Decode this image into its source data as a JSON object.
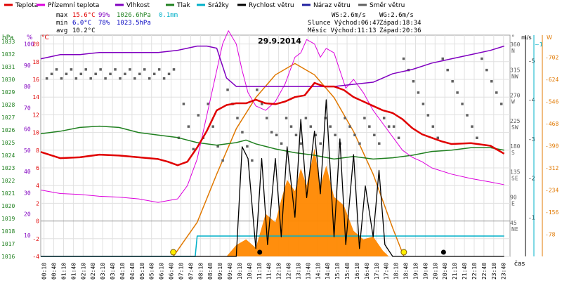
{
  "chart_data": {
    "type": "line",
    "title": "29.9.2014",
    "legend": [
      {
        "name": "Teplota",
        "color": "#e00000"
      },
      {
        "name": "Přízemní teplota",
        "color": "#dd00dd"
      },
      {
        "name": "Vlhkost",
        "color": "#8000c0"
      },
      {
        "name": "Tlak",
        "color": "#208020"
      },
      {
        "name": "Srážky",
        "color": "#00b0c8"
      },
      {
        "name": "Rychlost větru",
        "color": "#000000"
      },
      {
        "name": "Náraz větru",
        "color": "#2020a0"
      },
      {
        "name": "Směr větru",
        "color": "#606060"
      }
    ],
    "stats": {
      "max": {
        "label": "max",
        "temp": "15.6°C",
        "hum": "99%",
        "press": "1026.6hPa",
        "rain": "0.1mm"
      },
      "min": {
        "label": "min",
        "temp": "6.0°C",
        "hum": "78%",
        "press": "1023.5hPa"
      },
      "avg": {
        "label": "avg",
        "temp": "10.2°C"
      }
    },
    "info": {
      "ws": "WS:2.6m/s",
      "wg": "WG:2.6m/s",
      "sun": "Slunce Východ:06:47",
      "sun_set": "Západ:18:34",
      "moon": "Měsíc  Východ:11:13",
      "moon_set": "Západ:20:36"
    },
    "axes": {
      "hpa": {
        "label": "hPa",
        "ticks": [
          "1033",
          "1032",
          "1031",
          "1030",
          "1029",
          "1028",
          "1027",
          "1026",
          "1025",
          "1024",
          "1023",
          "1022",
          "1021",
          "1020",
          "1019",
          "1018",
          "1017",
          "1016"
        ]
      },
      "pct": {
        "label": "%",
        "ticks": [
          "100",
          "90",
          "80",
          "70",
          "60",
          "50",
          "40",
          "30",
          "20",
          "10"
        ]
      },
      "degc": {
        "label": "°C",
        "ticks": [
          "20",
          "18",
          "16",
          "14",
          "12",
          "10",
          "8",
          "6",
          "4",
          "2",
          "0",
          "-2",
          "-4"
        ]
      },
      "dir": {
        "label": "°",
        "ticks": [
          {
            "v": "360",
            "d": "N"
          },
          {
            "v": "315",
            "d": "NW"
          },
          {
            "v": "270",
            "d": "W"
          },
          {
            "v": "225",
            "d": "SW"
          },
          {
            "v": "180",
            "d": "S"
          },
          {
            "v": "135",
            "d": "SE"
          },
          {
            "v": "90",
            "d": "E"
          },
          {
            "v": "45",
            "d": "NE"
          }
        ]
      },
      "ms": {
        "label": "m/s",
        "ticks": [
          "5",
          "4",
          "3",
          "2",
          "1"
        ]
      },
      "wm2": {
        "label": "W",
        "ticks": [
          "702",
          "624",
          "546",
          "468",
          "390",
          "312",
          "234",
          "156",
          "78"
        ]
      },
      "rain_mm": {
        "label": "~1"
      },
      "time_label": "čas",
      "time_ticks": [
        "00:10",
        "00:40",
        "01:10",
        "01:40",
        "02:10",
        "02:40",
        "03:10",
        "03:40",
        "04:10",
        "04:40",
        "05:10",
        "05:40",
        "06:10",
        "06:40",
        "07:10",
        "07:40",
        "08:10",
        "08:40",
        "09:10",
        "09:40",
        "10:10",
        "10:40",
        "11:10",
        "11:40",
        "12:10",
        "12:40",
        "13:10",
        "13:40",
        "14:10",
        "14:40",
        "15:10",
        "15:40",
        "16:10",
        "16:40",
        "17:10",
        "17:40",
        "18:10",
        "18:40",
        "19:10",
        "19:40",
        "20:10",
        "20:40",
        "21:10",
        "21:40",
        "22:10",
        "22:40",
        "23:10",
        "23:40"
      ]
    },
    "series": {
      "teplota": {
        "x": [
          0,
          1,
          2,
          3,
          4,
          5,
          6,
          6.5,
          7,
          7.5,
          8,
          8.5,
          9,
          9.5,
          10,
          10.5,
          11,
          11.5,
          12,
          12.5,
          13,
          13.5,
          14,
          14.5,
          15,
          15.5,
          16,
          16.5,
          17,
          17.5,
          18,
          18.5,
          19,
          19.5,
          20,
          20.5,
          21,
          22,
          23,
          23.7
        ],
        "y": [
          7.8,
          7.1,
          7.2,
          7.5,
          7.4,
          7.2,
          7.0,
          6.7,
          6.3,
          6.7,
          8.3,
          10.2,
          12.5,
          13.1,
          13.3,
          13.3,
          13.7,
          13.3,
          13.2,
          13.5,
          14.0,
          14.2,
          15.6,
          15.2,
          15.2,
          14.8,
          14.0,
          13.5,
          13.0,
          12.5,
          12.2,
          11.5,
          10.5,
          9.8,
          9.4,
          9.0,
          8.7,
          8.8,
          8.5,
          7.6
        ]
      },
      "prizemni": {
        "x": [
          0,
          1,
          2,
          3,
          4,
          5,
          6,
          6.5,
          7,
          7.5,
          8,
          8.5,
          9,
          9.3,
          9.6,
          10,
          10.3,
          10.6,
          11,
          11.5,
          12,
          12.5,
          13,
          13.3,
          13.6,
          14,
          14.3,
          14.6,
          15,
          15.3,
          15.6,
          16,
          16.5,
          17,
          17.5,
          18,
          18.5,
          19,
          19.5,
          20,
          21,
          22,
          23,
          23.7
        ],
        "y": [
          3.5,
          3.1,
          3.0,
          2.8,
          2.7,
          2.5,
          2.1,
          2.3,
          2.5,
          4.0,
          7.0,
          12.0,
          17.0,
          20.0,
          21.5,
          20.0,
          17.0,
          14.5,
          13.0,
          12.5,
          13.5,
          15.5,
          18.5,
          19.0,
          20.5,
          20.0,
          18.5,
          19.5,
          19.0,
          17.0,
          15.0,
          16.0,
          14.5,
          12.5,
          11.0,
          9.5,
          8.0,
          7.2,
          6.7,
          6.0,
          5.3,
          4.8,
          4.4,
          4.1
        ]
      },
      "vlhkost": {
        "x": [
          0,
          1,
          2,
          3,
          4,
          5,
          6,
          7,
          7.5,
          8,
          8.5,
          9,
          9.5,
          10,
          11,
          12,
          13,
          14,
          15,
          16,
          17,
          18,
          19,
          20,
          21,
          22,
          23,
          23.7
        ],
        "y": [
          93,
          95,
          95,
          96,
          96,
          96,
          96,
          97,
          98,
          99,
          99,
          98,
          84,
          80,
          80,
          80,
          80,
          80,
          80,
          81,
          82,
          86,
          88,
          91,
          93,
          95,
          97,
          99
        ]
      },
      "tlak": {
        "x": [
          0,
          1,
          2,
          3,
          4,
          5,
          6,
          7,
          8,
          9,
          10,
          10.5,
          11,
          12,
          13,
          14,
          15,
          16,
          17,
          18,
          19,
          20,
          21,
          22,
          23,
          23.7
        ],
        "y": [
          1025.7,
          1025.9,
          1026.2,
          1026.3,
          1026.2,
          1025.8,
          1025.6,
          1025.4,
          1025.0,
          1024.8,
          1025.0,
          1025.2,
          1024.9,
          1024.5,
          1024.2,
          1024.0,
          1023.7,
          1023.9,
          1023.7,
          1023.8,
          1024.0,
          1024.3,
          1024.4,
          1024.6,
          1024.6,
          1024.4
        ]
      },
      "srazky": {
        "x": [
          0,
          7.9,
          8.0,
          23.7
        ],
        "y": [
          -4,
          -4,
          0,
          0
        ]
      },
      "rychlost": {
        "x": [
          0,
          10,
          10.3,
          10.6,
          11,
          11.3,
          11.6,
          12,
          12.3,
          12.6,
          13,
          13.3,
          13.6,
          14,
          14.3,
          14.6,
          15,
          15.3,
          15.6,
          16,
          16.3,
          16.6,
          17,
          17.3,
          17.6,
          18,
          23.7
        ],
        "y": [
          0,
          0,
          2.8,
          2.5,
          0.2,
          2.5,
          0.3,
          2.5,
          0.5,
          2.8,
          1.0,
          3.5,
          1.5,
          3.2,
          1.6,
          4.0,
          0.5,
          3.0,
          0.3,
          2.6,
          0.2,
          1.8,
          0.5,
          2.2,
          0.3,
          0,
          0
        ]
      },
      "solar": {
        "x": [
          6.78,
          8,
          9,
          10,
          11,
          12,
          13,
          14,
          15,
          16,
          17,
          18,
          18.57
        ],
        "y": [
          0,
          120,
          290,
          450,
          560,
          640,
          680,
          640,
          560,
          440,
          290,
          100,
          0
        ]
      }
    }
  }
}
